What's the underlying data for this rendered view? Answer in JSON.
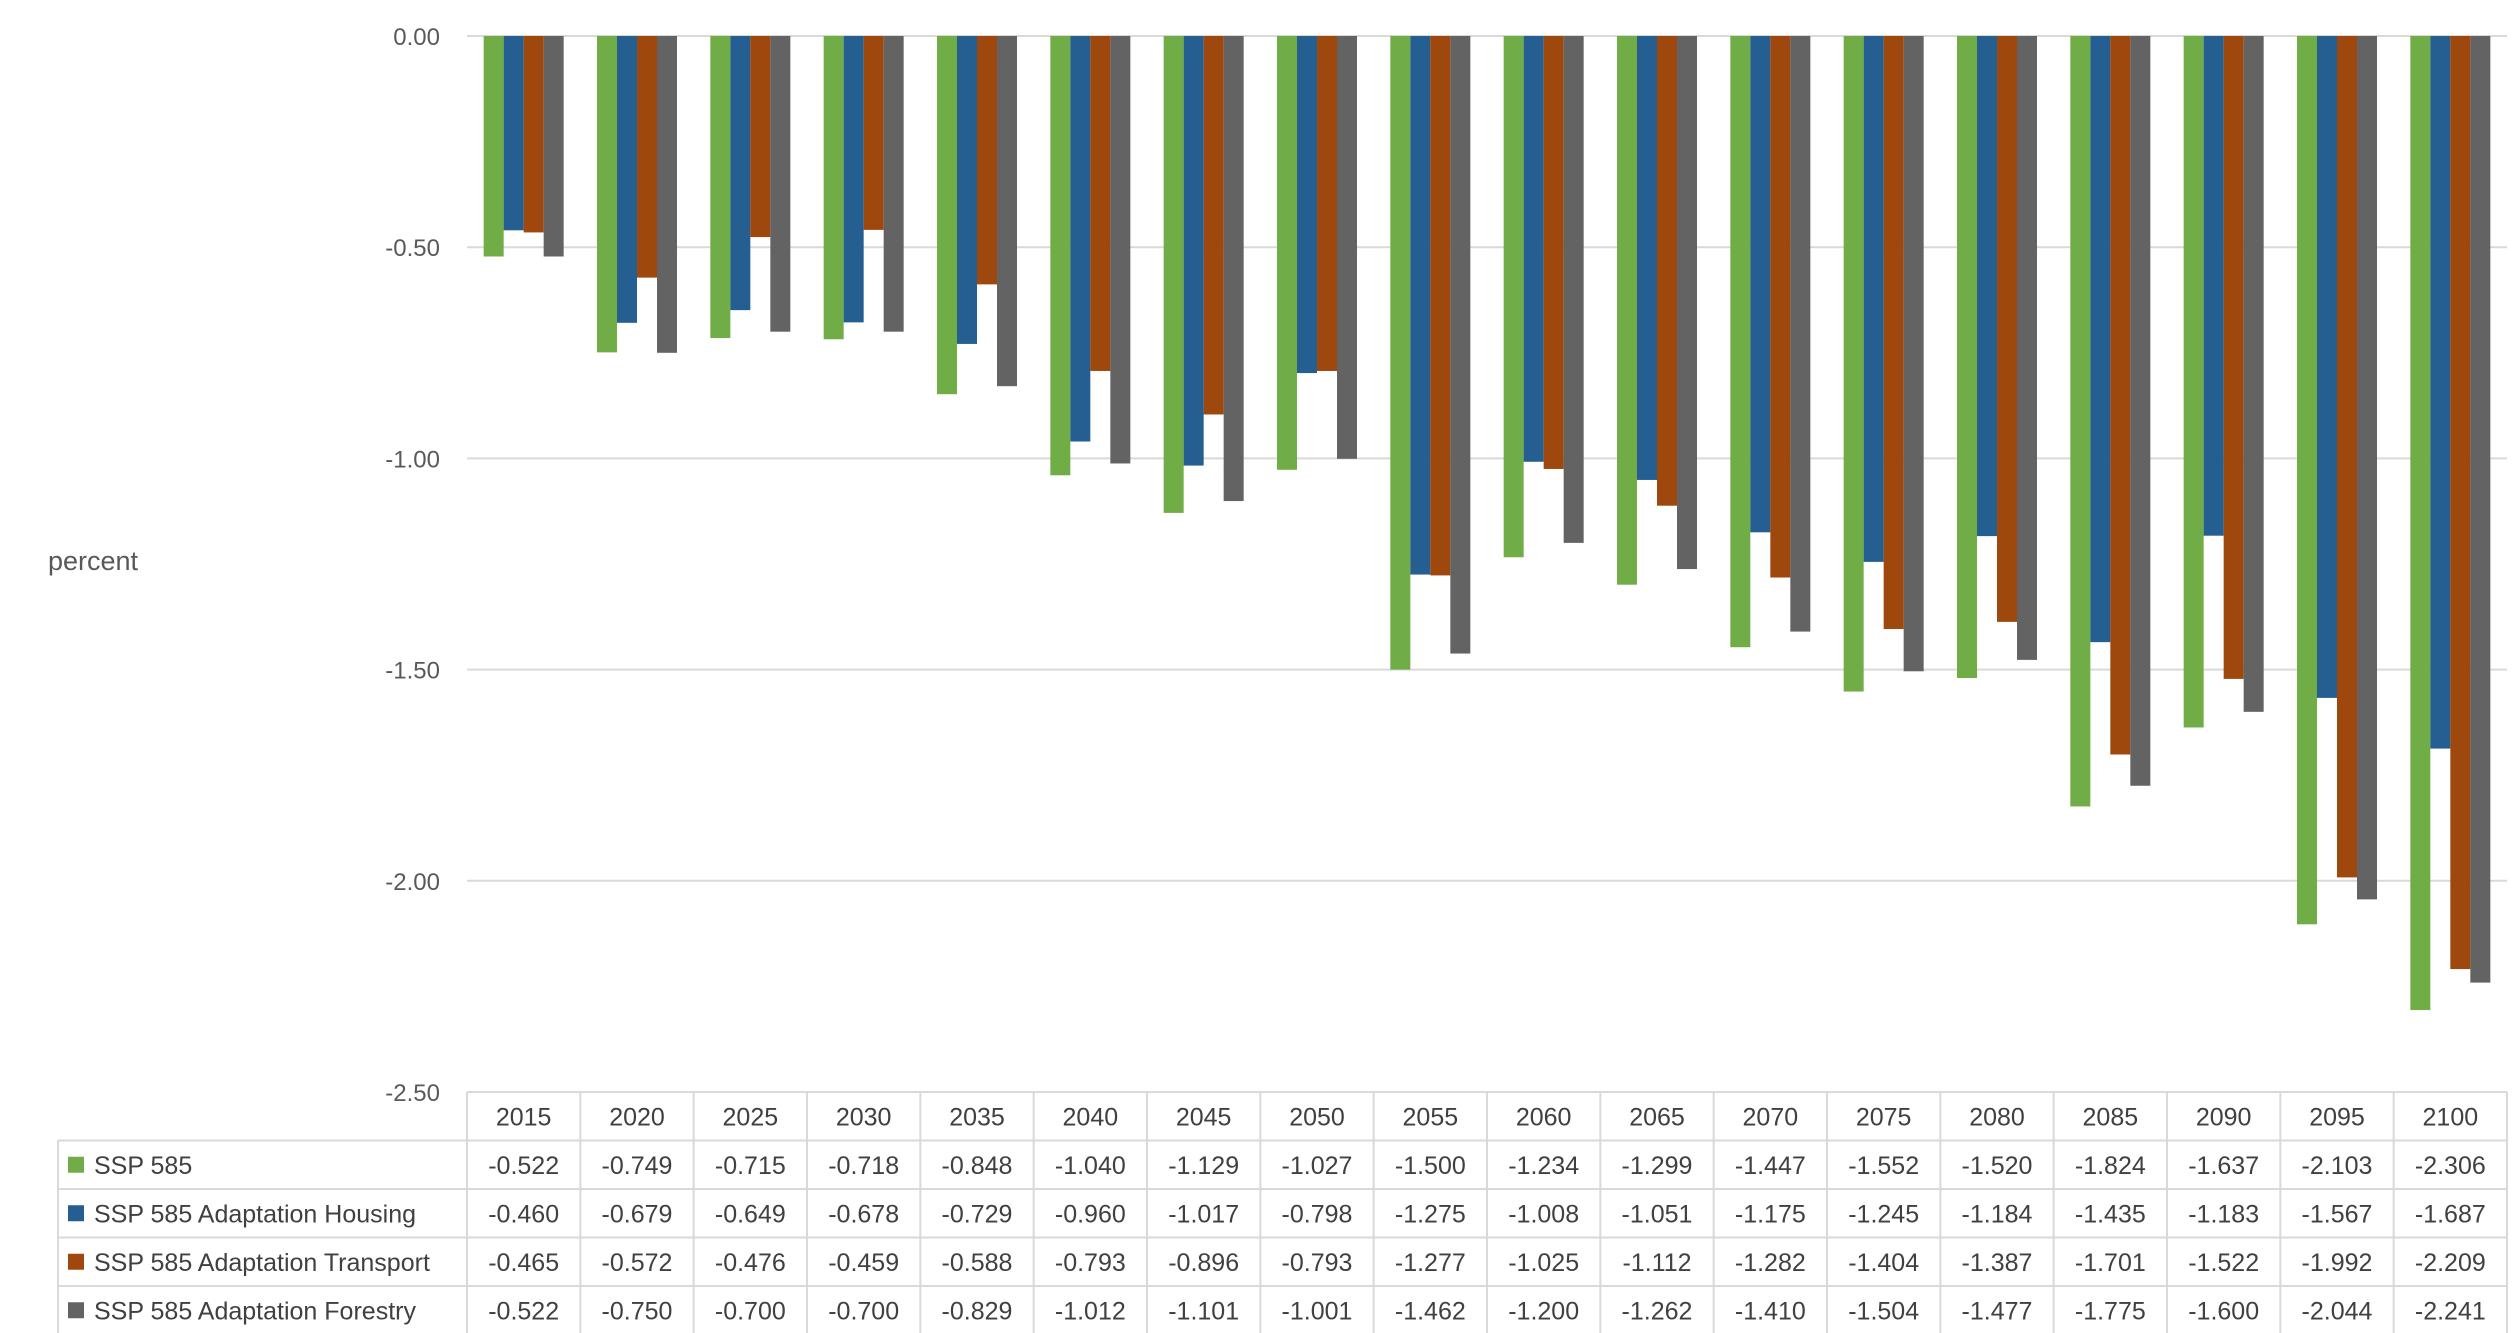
{
  "chart_data": {
    "type": "bar",
    "ylabel": "percent",
    "ylim": [
      -2.5,
      0
    ],
    "yticks": [
      "0.00",
      "-0.50",
      "-1.00",
      "-1.50",
      "-2.00",
      "-2.50"
    ],
    "ytick_values": [
      0,
      -0.5,
      -1.0,
      -1.5,
      -2.0,
      -2.5
    ],
    "grid": true,
    "legend": "data-table-below",
    "categories": [
      "2015",
      "2020",
      "2025",
      "2030",
      "2035",
      "2040",
      "2045",
      "2050",
      "2055",
      "2060",
      "2065",
      "2070",
      "2075",
      "2080",
      "2085",
      "2090",
      "2095",
      "2100"
    ],
    "series": [
      {
        "name": "SSP 585",
        "color": "#70ad47",
        "values": [
          -0.522,
          -0.749,
          -0.715,
          -0.718,
          -0.848,
          -1.04,
          -1.129,
          -1.027,
          -1.5,
          -1.234,
          -1.299,
          -1.447,
          -1.552,
          -1.52,
          -1.824,
          -1.637,
          -2.103,
          -2.306
        ],
        "labels": [
          "-0.522",
          "-0.749",
          "-0.715",
          "-0.718",
          "-0.848",
          "-1.040",
          "-1.129",
          "-1.027",
          "-1.500",
          "-1.234",
          "-1.299",
          "-1.447",
          "-1.552",
          "-1.520",
          "-1.824",
          "-1.637",
          "-2.103",
          "-2.306"
        ]
      },
      {
        "name": "SSP 585 Adaptation Housing",
        "color": "#255e91",
        "values": [
          -0.46,
          -0.679,
          -0.649,
          -0.678,
          -0.729,
          -0.96,
          -1.017,
          -0.798,
          -1.275,
          -1.008,
          -1.051,
          -1.175,
          -1.245,
          -1.184,
          -1.435,
          -1.183,
          -1.567,
          -1.687
        ],
        "labels": [
          "-0.460",
          "-0.679",
          "-0.649",
          "-0.678",
          "-0.729",
          "-0.960",
          "-1.017",
          "-0.798",
          "-1.275",
          "-1.008",
          "-1.051",
          "-1.175",
          "-1.245",
          "-1.184",
          "-1.435",
          "-1.183",
          "-1.567",
          "-1.687"
        ]
      },
      {
        "name": "SSP 585 Adaptation Transport",
        "color": "#9e480e",
        "values": [
          -0.465,
          -0.572,
          -0.476,
          -0.459,
          -0.588,
          -0.793,
          -0.896,
          -0.793,
          -1.277,
          -1.025,
          -1.112,
          -1.282,
          -1.404,
          -1.387,
          -1.701,
          -1.522,
          -1.992,
          -2.209
        ],
        "labels": [
          "-0.465",
          "-0.572",
          "-0.476",
          "-0.459",
          "-0.588",
          "-0.793",
          "-0.896",
          "-0.793",
          "-1.277",
          "-1.025",
          "-1.112",
          "-1.282",
          "-1.404",
          "-1.387",
          "-1.701",
          "-1.522",
          "-1.992",
          "-2.209"
        ]
      },
      {
        "name": "SSP 585 Adaptation Forestry",
        "color": "#636363",
        "values": [
          -0.522,
          -0.75,
          -0.7,
          -0.7,
          -0.829,
          -1.012,
          -1.101,
          -1.001,
          -1.462,
          -1.2,
          -1.262,
          -1.41,
          -1.504,
          -1.477,
          -1.775,
          -1.6,
          -2.044,
          -2.241
        ],
        "labels": [
          "-0.522",
          "-0.750",
          "-0.700",
          "-0.700",
          "-0.829",
          "-1.012",
          "-1.101",
          "-1.001",
          "-1.462",
          "-1.200",
          "-1.262",
          "-1.410",
          "-1.504",
          "-1.477",
          "-1.775",
          "-1.600",
          "-2.044",
          "-2.241"
        ]
      }
    ]
  },
  "colors": {
    "gridline": "#d9d9d9",
    "table_border": "#d9d9d9"
  }
}
